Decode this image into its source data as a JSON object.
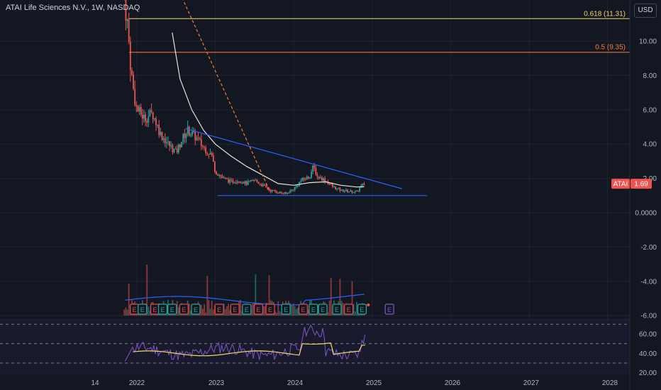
{
  "header": {
    "title": "ATAI Life Sciences N.V., 1W, NASDAQ",
    "currency_button": "USD"
  },
  "colors": {
    "background": "#131722",
    "up": "#26a69a",
    "down": "#ef5350",
    "fib_618": "#f2d56b",
    "fib_05": "#f57c3a",
    "trendline": "#2962ff",
    "ma": "#e8e3d6",
    "dashed_trend": "#f57c3a",
    "rsi": "#7e57c2",
    "rsi_ma": "#f2d56b",
    "earnings_red": "#e04a4a",
    "earnings_green": "#26a69a",
    "earnings_purple": "#7e57c2"
  },
  "fib_levels": [
    {
      "label": "0.618 (11.31)",
      "value": 11.31
    },
    {
      "label": "0.5 (9.35)",
      "value": 9.35
    }
  ],
  "price_tag": {
    "symbol": "ATAI",
    "value": "1.69"
  },
  "chart_data": {
    "type": "candlestick",
    "y_axis": {
      "ticks": [
        "10.00",
        "8.00",
        "6.00",
        "4.00",
        "2.00",
        "0.0000",
        "-2.00",
        "-4.00",
        "-6.00"
      ],
      "values": [
        10,
        8,
        6,
        4,
        2,
        0,
        -2,
        -4,
        -6
      ]
    },
    "x_axis": {
      "ticks": [
        "14",
        "2022",
        "2023",
        "2024",
        "2025",
        "2026",
        "2027",
        "2028"
      ]
    },
    "price_path": [
      [
        2021.84,
        12.5
      ],
      [
        2021.88,
        11.0
      ],
      [
        2021.92,
        8.5
      ],
      [
        2021.96,
        7.0
      ],
      [
        2022.0,
        6.0
      ],
      [
        2022.1,
        5.5
      ],
      [
        2022.2,
        5.8
      ],
      [
        2022.3,
        4.6
      ],
      [
        2022.4,
        4.0
      ],
      [
        2022.5,
        3.5
      ],
      [
        2022.6,
        4.5
      ],
      [
        2022.65,
        4.8
      ],
      [
        2022.75,
        4.4
      ],
      [
        2022.85,
        3.8
      ],
      [
        2022.95,
        3.4
      ],
      [
        2023.0,
        2.4
      ],
      [
        2023.1,
        2.0
      ],
      [
        2023.2,
        1.8
      ],
      [
        2023.3,
        1.9
      ],
      [
        2023.4,
        1.7
      ],
      [
        2023.5,
        1.9
      ],
      [
        2023.6,
        1.6
      ],
      [
        2023.7,
        1.3
      ],
      [
        2023.8,
        1.2
      ],
      [
        2023.9,
        1.1
      ],
      [
        2024.0,
        1.4
      ],
      [
        2024.1,
        1.9
      ],
      [
        2024.2,
        2.1
      ],
      [
        2024.25,
        2.7
      ],
      [
        2024.3,
        2.1
      ],
      [
        2024.4,
        1.9
      ],
      [
        2024.5,
        1.5
      ],
      [
        2024.6,
        1.3
      ],
      [
        2024.7,
        1.25
      ],
      [
        2024.8,
        1.2
      ],
      [
        2024.85,
        1.5
      ],
      [
        2024.9,
        1.69
      ]
    ],
    "ma_path": [
      [
        2022.45,
        10.5
      ],
      [
        2022.55,
        7.8
      ],
      [
        2022.7,
        6.0
      ],
      [
        2022.85,
        4.8
      ],
      [
        2023.0,
        4.0
      ],
      [
        2023.2,
        3.3
      ],
      [
        2023.4,
        2.7
      ],
      [
        2023.6,
        2.2
      ],
      [
        2023.8,
        1.7
      ],
      [
        2024.0,
        1.6
      ],
      [
        2024.2,
        1.75
      ],
      [
        2024.4,
        1.8
      ],
      [
        2024.6,
        1.6
      ],
      [
        2024.8,
        1.5
      ],
      [
        2024.9,
        1.52
      ]
    ],
    "upper_trendline": [
      [
        2022.62,
        4.9
      ],
      [
        2025.38,
        1.4
      ]
    ],
    "lower_trendline": [
      [
        2023.03,
        1.0
      ],
      [
        2025.7,
        1.0
      ]
    ],
    "dashed_trendline": [
      [
        2022.55,
        12.8
      ],
      [
        2023.7,
        1.2
      ]
    ],
    "rsi": {
      "ticks": [
        "60.00",
        "40.00",
        "20.00"
      ],
      "values": [
        60,
        40,
        20
      ],
      "levels": [
        70,
        50,
        30
      ]
    },
    "earnings": [
      {
        "x": 2021.97,
        "type": "red"
      },
      {
        "x": 2022.07,
        "type": "green"
      },
      {
        "x": 2022.23,
        "type": "red"
      },
      {
        "x": 2022.33,
        "type": "green"
      },
      {
        "x": 2022.45,
        "type": "green"
      },
      {
        "x": 2022.6,
        "type": "red"
      },
      {
        "x": 2022.75,
        "type": "green"
      },
      {
        "x": 2023.05,
        "type": "red"
      },
      {
        "x": 2023.25,
        "type": "red"
      },
      {
        "x": 2023.4,
        "type": "green"
      },
      {
        "x": 2023.55,
        "type": "red"
      },
      {
        "x": 2023.7,
        "type": "red"
      },
      {
        "x": 2023.9,
        "type": "green"
      },
      {
        "x": 2024.12,
        "type": "red"
      },
      {
        "x": 2024.25,
        "type": "green"
      },
      {
        "x": 2024.37,
        "type": "green"
      },
      {
        "x": 2024.55,
        "type": "green"
      },
      {
        "x": 2024.7,
        "type": "red"
      },
      {
        "x": 2024.87,
        "type": "green"
      },
      {
        "x": 2025.22,
        "type": "purple"
      }
    ]
  }
}
